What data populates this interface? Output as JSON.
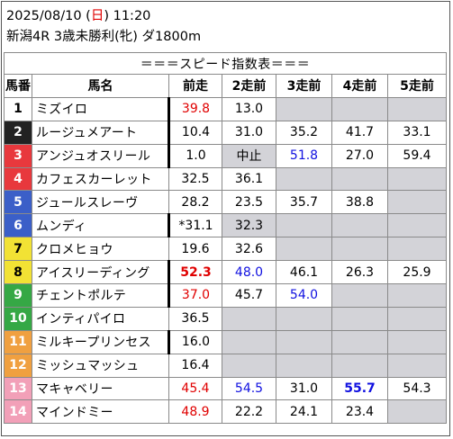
{
  "header": {
    "date_prefix": "2025/08/10 (",
    "weekday": "日",
    "date_suffix": ") 11:20",
    "race_line": "新潟4R 3歳未勝利(牝) ダ1800m"
  },
  "table": {
    "title": "＝＝＝スピード指数表＝＝＝",
    "columns": [
      "馬番",
      "馬名",
      "前走",
      "2走前",
      "3走前",
      "4走前",
      "5走前"
    ],
    "rows": [
      {
        "num": "1",
        "name": "ミズイロ",
        "num_bg": "#ffffff",
        "num_fg": "#000000",
        "bar": true,
        "vals": [
          {
            "t": "39.8",
            "c": "red"
          },
          {
            "t": "13.0"
          },
          {
            "t": ""
          },
          {
            "t": ""
          },
          {
            "t": ""
          }
        ]
      },
      {
        "num": "2",
        "name": "ルージュメアート",
        "num_bg": "#222222",
        "num_fg": "#ffffff",
        "bar": true,
        "vals": [
          {
            "t": "10.4"
          },
          {
            "t": "31.0"
          },
          {
            "t": "35.2"
          },
          {
            "t": "41.7"
          },
          {
            "t": "33.1"
          }
        ]
      },
      {
        "num": "3",
        "name": "アンジュオスリール",
        "num_bg": "#e8383d",
        "num_fg": "#ffffff",
        "bar": true,
        "vals": [
          {
            "t": "1.0"
          },
          {
            "t": "中止",
            "shade": true
          },
          {
            "t": "51.8",
            "c": "blue"
          },
          {
            "t": "27.0"
          },
          {
            "t": "59.4"
          }
        ]
      },
      {
        "num": "4",
        "name": "カフェスカーレット",
        "num_bg": "#e8383d",
        "num_fg": "#ffffff",
        "bar": false,
        "vals": [
          {
            "t": "32.5"
          },
          {
            "t": "36.1"
          },
          {
            "t": ""
          },
          {
            "t": ""
          },
          {
            "t": ""
          }
        ]
      },
      {
        "num": "5",
        "name": "ジュールスレーヴ",
        "num_bg": "#3b5fc8",
        "num_fg": "#ffffff",
        "bar": false,
        "vals": [
          {
            "t": "28.2"
          },
          {
            "t": "23.5"
          },
          {
            "t": "35.7"
          },
          {
            "t": "38.8"
          },
          {
            "t": ""
          }
        ]
      },
      {
        "num": "6",
        "name": "ムンディ",
        "num_bg": "#3b5fc8",
        "num_fg": "#ffffff",
        "bar": true,
        "vals": [
          {
            "t": "*31.1"
          },
          {
            "t": "32.3",
            "shade": true
          },
          {
            "t": ""
          },
          {
            "t": ""
          },
          {
            "t": ""
          }
        ]
      },
      {
        "num": "7",
        "name": "クロメヒョウ",
        "num_bg": "#f2e234",
        "num_fg": "#000000",
        "bar": false,
        "vals": [
          {
            "t": "19.6"
          },
          {
            "t": "32.6"
          },
          {
            "t": ""
          },
          {
            "t": ""
          },
          {
            "t": ""
          }
        ]
      },
      {
        "num": "8",
        "name": "アイスリーディング",
        "num_bg": "#f2e234",
        "num_fg": "#000000",
        "bar": true,
        "vals": [
          {
            "t": "52.3",
            "c": "red",
            "b": true
          },
          {
            "t": "48.0",
            "c": "blue"
          },
          {
            "t": "46.1"
          },
          {
            "t": "26.3"
          },
          {
            "t": "25.9"
          }
        ]
      },
      {
        "num": "9",
        "name": "チェントポルテ",
        "num_bg": "#35a845",
        "num_fg": "#ffffff",
        "bar": true,
        "vals": [
          {
            "t": "37.0",
            "c": "red"
          },
          {
            "t": "45.7"
          },
          {
            "t": "54.0",
            "c": "blue"
          },
          {
            "t": ""
          },
          {
            "t": ""
          }
        ]
      },
      {
        "num": "10",
        "name": "インティパイロ",
        "num_bg": "#35a845",
        "num_fg": "#ffffff",
        "bar": false,
        "vals": [
          {
            "t": "36.5"
          },
          {
            "t": ""
          },
          {
            "t": ""
          },
          {
            "t": ""
          },
          {
            "t": ""
          }
        ]
      },
      {
        "num": "11",
        "name": "ミルキープリンセス",
        "num_bg": "#f0a040",
        "num_fg": "#ffffff",
        "bar": true,
        "vals": [
          {
            "t": "16.0"
          },
          {
            "t": ""
          },
          {
            "t": ""
          },
          {
            "t": ""
          },
          {
            "t": ""
          }
        ]
      },
      {
        "num": "12",
        "name": "ミッシュマッシュ",
        "num_bg": "#f0a040",
        "num_fg": "#ffffff",
        "bar": false,
        "vals": [
          {
            "t": "16.4"
          },
          {
            "t": ""
          },
          {
            "t": ""
          },
          {
            "t": ""
          },
          {
            "t": ""
          }
        ]
      },
      {
        "num": "13",
        "name": "マキャベリー",
        "num_bg": "#f2a0b8",
        "num_fg": "#ffffff",
        "bar": false,
        "vals": [
          {
            "t": "45.4",
            "c": "red"
          },
          {
            "t": "54.5",
            "c": "blue"
          },
          {
            "t": "31.0"
          },
          {
            "t": "55.7",
            "c": "blue",
            "b": true
          },
          {
            "t": "54.3"
          }
        ]
      },
      {
        "num": "14",
        "name": "マインドミー",
        "num_bg": "#f2a0b8",
        "num_fg": "#ffffff",
        "bar": false,
        "vals": [
          {
            "t": "48.9",
            "c": "red"
          },
          {
            "t": "22.2"
          },
          {
            "t": "24.1"
          },
          {
            "t": "23.4"
          },
          {
            "t": ""
          }
        ]
      }
    ]
  }
}
